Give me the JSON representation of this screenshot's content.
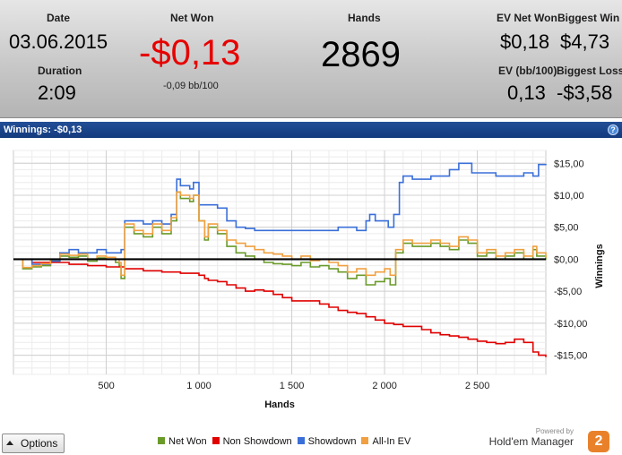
{
  "stats": {
    "date_label": "Date",
    "date": "03.06.2015",
    "duration_label": "Duration",
    "duration": "2:09",
    "net_won_label": "Net Won",
    "net_won": "-$0,13",
    "net_won_bb": "-0,09 bb/100",
    "hands_label": "Hands",
    "hands": "2869",
    "ev_net_won_label": "EV Net Won",
    "ev_net_won": "$0,18",
    "biggest_win_label": "Biggest Win",
    "biggest_win": "$4,73",
    "ev_bb_label": "EV (bb/100)",
    "ev_bb": "0,13",
    "biggest_loss_label": "Biggest Loss",
    "biggest_loss": "-$3,58"
  },
  "panel": {
    "title": "Winnings: -$0,13",
    "help_icon": "help-icon"
  },
  "footer": {
    "options_label": "Options",
    "powered_by": "Powered by",
    "brand": "Hold'em Manager",
    "brand_logo_text": "2"
  },
  "colors": {
    "net_won": "#6a9a2a",
    "non_showdown": "#e00000",
    "showdown": "#3a6fd8",
    "all_in_ev": "#f0a040"
  },
  "chart_data": {
    "type": "line",
    "xlabel": "Hands",
    "ylabel": "Winnings",
    "xlim": [
      0,
      2869
    ],
    "ylim": [
      -18,
      17
    ],
    "x_ticks": [
      500,
      1000,
      1500,
      2000,
      2500
    ],
    "x_tick_labels": [
      "500",
      "1 000",
      "1 500",
      "2 000",
      "2 500"
    ],
    "y_ticks": [
      15,
      10,
      5,
      0,
      -5,
      -10,
      -15
    ],
    "y_tick_labels": [
      "$15,00",
      "$10,00",
      "$5,00",
      "$0,00",
      "-$5,00",
      "-$10,00",
      "-$15,00"
    ],
    "grid": true,
    "legend_position": "bottom",
    "series": [
      {
        "name": "Net Won",
        "color": "#6a9a2a",
        "points": [
          [
            0,
            0
          ],
          [
            50,
            -1.5
          ],
          [
            100,
            -1.2
          ],
          [
            150,
            -1
          ],
          [
            200,
            -0.3
          ],
          [
            250,
            0.5
          ],
          [
            300,
            0.3
          ],
          [
            350,
            0.5
          ],
          [
            400,
            -0.3
          ],
          [
            450,
            0.2
          ],
          [
            500,
            0
          ],
          [
            550,
            -0.5
          ],
          [
            570,
            -1
          ],
          [
            580,
            -3
          ],
          [
            600,
            5
          ],
          [
            650,
            4
          ],
          [
            700,
            3.5
          ],
          [
            750,
            5
          ],
          [
            800,
            4
          ],
          [
            850,
            6
          ],
          [
            880,
            10.5
          ],
          [
            900,
            9.5
          ],
          [
            950,
            9
          ],
          [
            970,
            10
          ],
          [
            1000,
            6
          ],
          [
            1030,
            3
          ],
          [
            1050,
            5
          ],
          [
            1100,
            4
          ],
          [
            1150,
            2
          ],
          [
            1200,
            1
          ],
          [
            1250,
            0.5
          ],
          [
            1300,
            0
          ],
          [
            1350,
            -0.5
          ],
          [
            1400,
            -0.7
          ],
          [
            1450,
            -0.8
          ],
          [
            1500,
            -1
          ],
          [
            1550,
            -0.5
          ],
          [
            1600,
            -1.2
          ],
          [
            1650,
            -1
          ],
          [
            1700,
            -1.5
          ],
          [
            1750,
            -2
          ],
          [
            1800,
            -3
          ],
          [
            1850,
            -2.5
          ],
          [
            1900,
            -4
          ],
          [
            1950,
            -3.5
          ],
          [
            2000,
            -3
          ],
          [
            2030,
            -4
          ],
          [
            2060,
            1
          ],
          [
            2100,
            2.5
          ],
          [
            2150,
            2
          ],
          [
            2200,
            2
          ],
          [
            2250,
            2.5
          ],
          [
            2300,
            2
          ],
          [
            2350,
            1.5
          ],
          [
            2400,
            3
          ],
          [
            2450,
            2.5
          ],
          [
            2500,
            0.5
          ],
          [
            2550,
            1
          ],
          [
            2600,
            0
          ],
          [
            2650,
            0.5
          ],
          [
            2700,
            1
          ],
          [
            2750,
            0
          ],
          [
            2800,
            1.5
          ],
          [
            2820,
            0.5
          ],
          [
            2869,
            -0.1
          ]
        ]
      },
      {
        "name": "Non Showdown",
        "color": "#e00000",
        "points": [
          [
            0,
            0
          ],
          [
            100,
            -0.5
          ],
          [
            200,
            -0.5
          ],
          [
            300,
            -0.8
          ],
          [
            400,
            -1
          ],
          [
            500,
            -1.2
          ],
          [
            600,
            -1.5
          ],
          [
            700,
            -1.8
          ],
          [
            800,
            -2
          ],
          [
            900,
            -2.2
          ],
          [
            1000,
            -2.5
          ],
          [
            1030,
            -3
          ],
          [
            1050,
            -3.3
          ],
          [
            1100,
            -3.5
          ],
          [
            1150,
            -4
          ],
          [
            1200,
            -4.5
          ],
          [
            1250,
            -5
          ],
          [
            1300,
            -4.8
          ],
          [
            1350,
            -5
          ],
          [
            1400,
            -5.5
          ],
          [
            1450,
            -6
          ],
          [
            1500,
            -6.5
          ],
          [
            1550,
            -6.5
          ],
          [
            1600,
            -6.5
          ],
          [
            1650,
            -7
          ],
          [
            1700,
            -7.5
          ],
          [
            1750,
            -8
          ],
          [
            1800,
            -8.3
          ],
          [
            1850,
            -8.5
          ],
          [
            1900,
            -9
          ],
          [
            1950,
            -9.5
          ],
          [
            2000,
            -10
          ],
          [
            2050,
            -10.2
          ],
          [
            2100,
            -10.5
          ],
          [
            2150,
            -10.5
          ],
          [
            2200,
            -11
          ],
          [
            2250,
            -11.5
          ],
          [
            2300,
            -11.8
          ],
          [
            2350,
            -12
          ],
          [
            2400,
            -12.2
          ],
          [
            2450,
            -12.5
          ],
          [
            2500,
            -12.8
          ],
          [
            2550,
            -13
          ],
          [
            2600,
            -13.2
          ],
          [
            2650,
            -13
          ],
          [
            2700,
            -12.5
          ],
          [
            2750,
            -13
          ],
          [
            2800,
            -14.5
          ],
          [
            2830,
            -15
          ],
          [
            2869,
            -15.3
          ]
        ]
      },
      {
        "name": "Showdown",
        "color": "#3a6fd8",
        "points": [
          [
            0,
            0
          ],
          [
            100,
            -0.8
          ],
          [
            200,
            -0.3
          ],
          [
            250,
            1
          ],
          [
            300,
            1.5
          ],
          [
            350,
            1
          ],
          [
            400,
            1
          ],
          [
            450,
            1.5
          ],
          [
            500,
            1
          ],
          [
            550,
            1
          ],
          [
            580,
            1.5
          ],
          [
            600,
            6
          ],
          [
            650,
            6
          ],
          [
            700,
            5.5
          ],
          [
            750,
            6
          ],
          [
            800,
            5.5
          ],
          [
            850,
            7
          ],
          [
            880,
            12.5
          ],
          [
            900,
            11.5
          ],
          [
            950,
            11
          ],
          [
            970,
            12
          ],
          [
            1000,
            8.5
          ],
          [
            1050,
            8.5
          ],
          [
            1100,
            8
          ],
          [
            1150,
            6
          ],
          [
            1200,
            5
          ],
          [
            1250,
            4.8
          ],
          [
            1300,
            4.5
          ],
          [
            1400,
            4.5
          ],
          [
            1500,
            4.5
          ],
          [
            1600,
            4.5
          ],
          [
            1700,
            4.5
          ],
          [
            1750,
            5
          ],
          [
            1800,
            5
          ],
          [
            1850,
            4.5
          ],
          [
            1900,
            6
          ],
          [
            1920,
            7
          ],
          [
            1950,
            6
          ],
          [
            2000,
            6
          ],
          [
            2020,
            5
          ],
          [
            2050,
            7
          ],
          [
            2080,
            12
          ],
          [
            2100,
            13
          ],
          [
            2150,
            12.5
          ],
          [
            2200,
            12.5
          ],
          [
            2250,
            13
          ],
          [
            2300,
            13
          ],
          [
            2350,
            14
          ],
          [
            2400,
            15
          ],
          [
            2450,
            15
          ],
          [
            2470,
            13.5
          ],
          [
            2500,
            13.5
          ],
          [
            2550,
            13.5
          ],
          [
            2600,
            13
          ],
          [
            2650,
            13
          ],
          [
            2700,
            13
          ],
          [
            2750,
            13.5
          ],
          [
            2800,
            13
          ],
          [
            2830,
            14.8
          ],
          [
            2869,
            14.7
          ]
        ]
      },
      {
        "name": "All-In EV",
        "color": "#f0a040",
        "points": [
          [
            0,
            0
          ],
          [
            50,
            -1.3
          ],
          [
            100,
            -1
          ],
          [
            150,
            -0.7
          ],
          [
            200,
            0
          ],
          [
            250,
            0.8
          ],
          [
            300,
            0.6
          ],
          [
            350,
            0.8
          ],
          [
            400,
            0
          ],
          [
            450,
            0.5
          ],
          [
            500,
            0.3
          ],
          [
            550,
            0
          ],
          [
            570,
            -0.5
          ],
          [
            580,
            -2.5
          ],
          [
            600,
            5.5
          ],
          [
            650,
            4.5
          ],
          [
            700,
            4
          ],
          [
            750,
            5.5
          ],
          [
            800,
            4.5
          ],
          [
            850,
            6.5
          ],
          [
            880,
            10.5
          ],
          [
            900,
            10
          ],
          [
            950,
            9.5
          ],
          [
            970,
            10
          ],
          [
            1000,
            6
          ],
          [
            1030,
            3.5
          ],
          [
            1050,
            5.5
          ],
          [
            1100,
            4.5
          ],
          [
            1150,
            3
          ],
          [
            1200,
            2.5
          ],
          [
            1250,
            2
          ],
          [
            1300,
            1.5
          ],
          [
            1350,
            1
          ],
          [
            1400,
            0.8
          ],
          [
            1450,
            0.5
          ],
          [
            1500,
            0
          ],
          [
            1550,
            0.5
          ],
          [
            1600,
            -0.2
          ],
          [
            1650,
            0
          ],
          [
            1700,
            -0.5
          ],
          [
            1750,
            -1
          ],
          [
            1800,
            -2
          ],
          [
            1850,
            -1.5
          ],
          [
            1900,
            -2.5
          ],
          [
            1950,
            -2
          ],
          [
            2000,
            -1.5
          ],
          [
            2030,
            -2.5
          ],
          [
            2060,
            1.5
          ],
          [
            2100,
            3
          ],
          [
            2150,
            2.5
          ],
          [
            2200,
            2.5
          ],
          [
            2250,
            3
          ],
          [
            2300,
            2.5
          ],
          [
            2350,
            2
          ],
          [
            2400,
            3.5
          ],
          [
            2450,
            3
          ],
          [
            2500,
            1
          ],
          [
            2550,
            1.5
          ],
          [
            2600,
            0.5
          ],
          [
            2650,
            1
          ],
          [
            2700,
            1.5
          ],
          [
            2750,
            0.5
          ],
          [
            2800,
            2
          ],
          [
            2820,
            1
          ],
          [
            2869,
            0.2
          ]
        ]
      }
    ]
  }
}
